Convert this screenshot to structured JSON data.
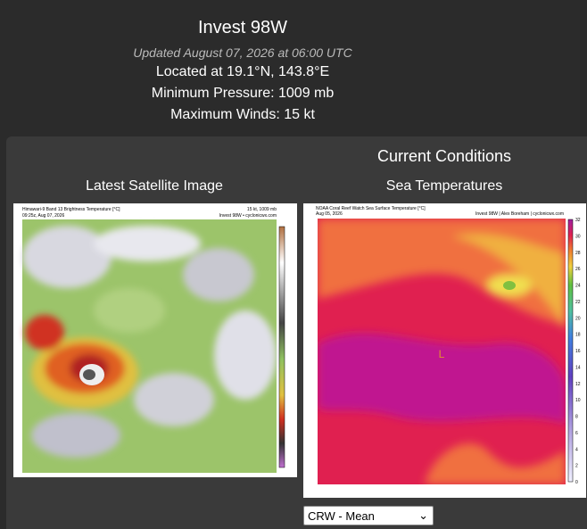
{
  "header": {
    "title": "Invest 98W",
    "updated": "Updated August 07, 2026 at 06:00 UTC",
    "location": "Located at 19.1°N, 143.8°E",
    "pressure": "Minimum Pressure: 1009 mb",
    "winds": "Maximum Winds: 15 kt"
  },
  "conditions": {
    "title": "Current Conditions",
    "satellite": {
      "heading": "Latest Satellite Image",
      "image_title": "Himawari-9 Band 13 Brightness Temperature [°C]",
      "image_time": "09:25z, Aug 07, 2026",
      "image_info": "15 kt, 1009 mb",
      "image_credit": "Invest 98W • cyclonicwx.com"
    },
    "sst": {
      "heading": "Sea Temperatures",
      "image_title": "NOAA Coral Reef Watch Sea Surface Temperature [°C]",
      "image_date": "Aug 05, 2026",
      "image_credit": "Invest 98W | Alex Boreham | cyclonicwx.com",
      "center_marker": "L",
      "colorbar_ticks": [
        32,
        30,
        28,
        26,
        24,
        22,
        20,
        18,
        16,
        14,
        12,
        10,
        8,
        6,
        4,
        2,
        0
      ],
      "dropdown": "CRW - Mean"
    }
  }
}
